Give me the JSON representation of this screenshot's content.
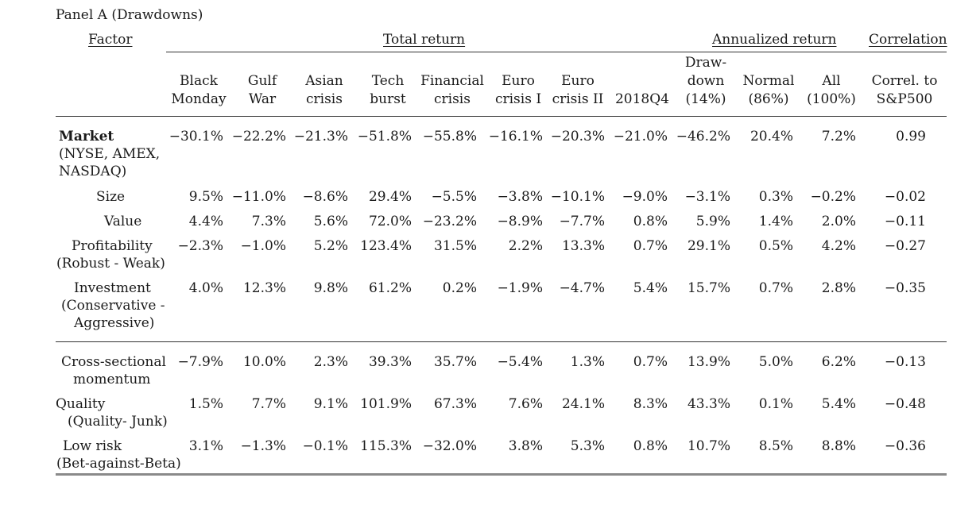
{
  "panel_title": "Panel A (Drawdowns)",
  "group_headers": {
    "factor": "Factor",
    "total_return": "Total return",
    "annualized_return": "Annualized return",
    "correlation": "Correlation"
  },
  "columns": [
    [
      "Black",
      "Monday"
    ],
    [
      "Gulf",
      "War"
    ],
    [
      "Asian",
      "crisis"
    ],
    [
      "Tech",
      "burst"
    ],
    [
      "Financial",
      "crisis"
    ],
    [
      "Euro",
      "crisis I"
    ],
    [
      "Euro",
      "crisis II"
    ],
    [
      "",
      "2018Q4"
    ],
    [
      "Draw-",
      "down",
      "(14%)"
    ],
    [
      "Normal",
      "(86%)"
    ],
    [
      "All",
      "(100%)"
    ],
    [
      "Correl. to",
      "S&P500"
    ]
  ],
  "rows": [
    {
      "label": [
        "Market",
        "(NYSE, AMEX,",
        "NASDAQ)"
      ],
      "bold_first": true,
      "values": [
        "−30.1%",
        "−22.2%",
        "−21.3%",
        "−51.8%",
        "−55.8%",
        "−16.1%",
        "−20.3%",
        "−21.0%",
        "−46.2%",
        "20.4%",
        "7.2%",
        "0.99"
      ]
    },
    {
      "label": [
        "Size"
      ],
      "values": [
        "9.5%",
        "−11.0%",
        "−8.6%",
        "29.4%",
        "−5.5%",
        "−3.8%",
        "−10.1%",
        "−9.0%",
        "−3.1%",
        "0.3%",
        "−0.2%",
        "−0.02"
      ]
    },
    {
      "label": [
        "Value"
      ],
      "values": [
        "4.4%",
        "7.3%",
        "5.6%",
        "72.0%",
        "−23.2%",
        "−8.9%",
        "−7.7%",
        "0.8%",
        "5.9%",
        "1.4%",
        "2.0%",
        "−0.11"
      ]
    },
    {
      "label": [
        "Profitability",
        "(Robust - Weak)"
      ],
      "values": [
        "−2.3%",
        "−1.0%",
        "5.2%",
        "123.4%",
        "31.5%",
        "2.2%",
        "13.3%",
        "0.7%",
        "29.1%",
        "0.5%",
        "4.2%",
        "−0.27"
      ]
    },
    {
      "label": [
        "Investment",
        "(Conservative -",
        "Aggressive)"
      ],
      "values": [
        "4.0%",
        "12.3%",
        "9.8%",
        "61.2%",
        "0.2%",
        "−1.9%",
        "−4.7%",
        "5.4%",
        "15.7%",
        "0.7%",
        "2.8%",
        "−0.35"
      ]
    },
    {
      "label": [
        "Cross-sectional",
        "momentum"
      ],
      "values": [
        "−7.9%",
        "10.0%",
        "2.3%",
        "39.3%",
        "35.7%",
        "−5.4%",
        "1.3%",
        "0.7%",
        "13.9%",
        "5.0%",
        "6.2%",
        "−0.13"
      ]
    },
    {
      "label": [
        "Quality",
        "(Quality- Junk)"
      ],
      "values": [
        "1.5%",
        "7.7%",
        "9.1%",
        "101.9%",
        "67.3%",
        "7.6%",
        "24.1%",
        "8.3%",
        "43.3%",
        "0.1%",
        "5.4%",
        "−0.48"
      ]
    },
    {
      "label": [
        "Low risk",
        "(Bet-against-Beta)"
      ],
      "values": [
        "3.1%",
        "−1.3%",
        "−0.1%",
        "115.3%",
        "−32.0%",
        "3.8%",
        "5.3%",
        "0.8%",
        "10.7%",
        "8.5%",
        "8.8%",
        "−0.36"
      ]
    }
  ]
}
